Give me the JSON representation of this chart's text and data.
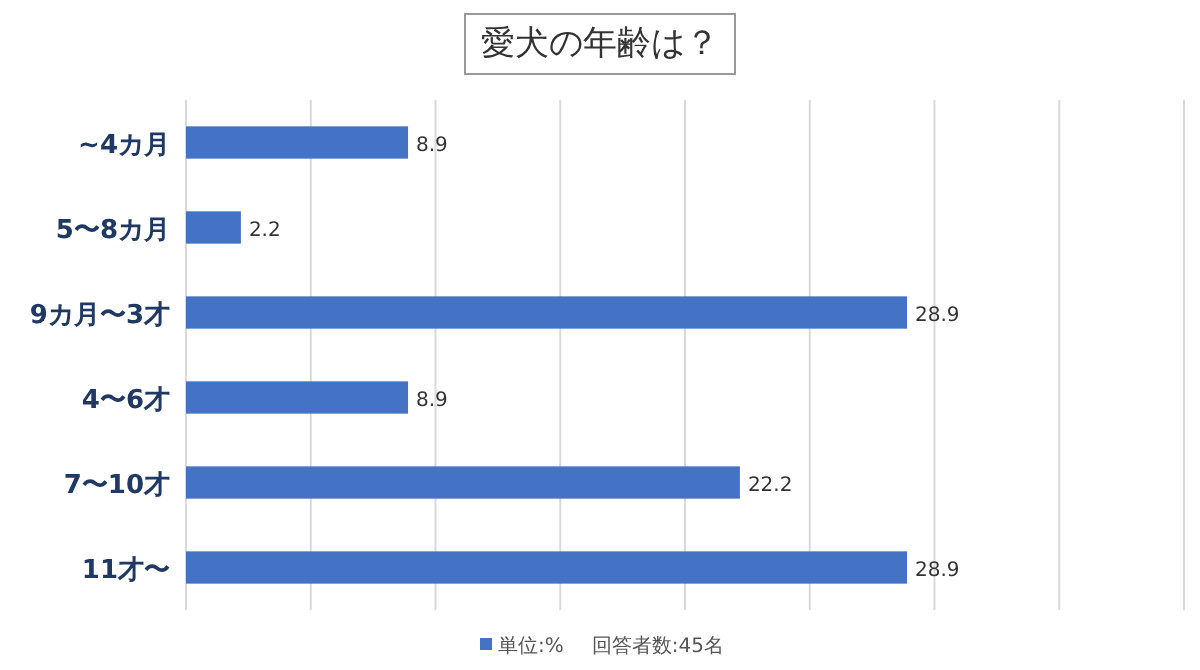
{
  "chart_data": {
    "type": "bar",
    "orientation": "horizontal",
    "title": "愛犬の年齢は？",
    "categories": [
      "~4カ月",
      "5〜8カ月",
      "9カ月〜3才",
      "4〜6才",
      "7〜10才",
      "11才〜"
    ],
    "series": [
      {
        "name": "単位:%",
        "color": "#4472c4",
        "values": [
          8.9,
          2.2,
          28.9,
          8.9,
          22.2,
          28.9
        ]
      }
    ],
    "xlim": [
      0,
      40
    ],
    "xticks": [
      {
        "value": 0,
        "label": null
      },
      {
        "value": 5,
        "label": null
      },
      {
        "value": 10,
        "label": null
      },
      {
        "value": 15,
        "label": null
      },
      {
        "value": 20,
        "label": null
      },
      {
        "value": 25,
        "label": null
      },
      {
        "value": 30,
        "label": null
      },
      {
        "value": 35,
        "label": null
      },
      {
        "value": 40,
        "label": null
      }
    ],
    "tick_labels": "y",
    "grid": "x",
    "data_labels": true,
    "legend": "bottom",
    "annotations": [
      "回答者数:45名"
    ]
  }
}
